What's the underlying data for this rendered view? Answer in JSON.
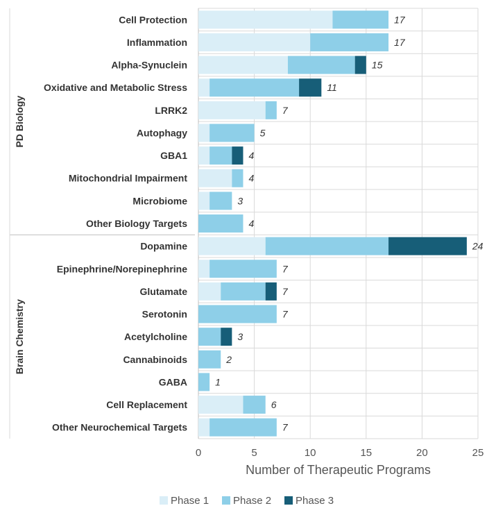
{
  "chart_data": {
    "type": "bar",
    "orientation": "horizontal",
    "stacked": true,
    "xlabel": "Number of Therapeutic Programs",
    "xlim": [
      0,
      25
    ],
    "xticks": [
      0,
      5,
      10,
      15,
      20,
      25
    ],
    "grid": true,
    "legend_position": "bottom",
    "groups": [
      {
        "name": "PD Biology",
        "categories": [
          "Cell Protection",
          "Inflammation",
          "Alpha-Synuclein",
          "Oxidative and Metabolic Stress",
          "LRRK2",
          "Autophagy",
          "GBA1",
          "Mitochondrial Impairment",
          "Microbiome",
          "Other  Biology Targets"
        ]
      },
      {
        "name": "Brain Chemistry",
        "categories": [
          "Dopamine",
          "Epinephrine/Norepinephrine",
          "Glutamate",
          "Serotonin",
          "Acetylcholine",
          "Cannabinoids",
          "GABA",
          "Cell Replacement",
          "Other Neurochemical Targets"
        ]
      }
    ],
    "categories": [
      "Cell Protection",
      "Inflammation",
      "Alpha-Synuclein",
      "Oxidative and Metabolic Stress",
      "LRRK2",
      "Autophagy",
      "GBA1",
      "Mitochondrial Impairment",
      "Microbiome",
      "Other  Biology Targets",
      "Dopamine",
      "Epinephrine/Norepinephrine",
      "Glutamate",
      "Serotonin",
      "Acetylcholine",
      "Cannabinoids",
      "GABA",
      "Cell Replacement",
      "Other Neurochemical Targets"
    ],
    "series": [
      {
        "name": "Phase 1",
        "color": "#daeef7",
        "values": [
          12,
          10,
          8,
          1,
          6,
          1,
          1,
          3,
          1,
          0,
          6,
          1,
          2,
          0,
          0,
          0,
          0,
          4,
          1
        ]
      },
      {
        "name": "Phase 2",
        "color": "#8ecfe8",
        "values": [
          5,
          7,
          6,
          8,
          1,
          4,
          2,
          1,
          2,
          4,
          11,
          6,
          4,
          7,
          2,
          2,
          1,
          2,
          6
        ]
      },
      {
        "name": "Phase 3",
        "color": "#175e78",
        "values": [
          0,
          0,
          1,
          2,
          0,
          0,
          1,
          0,
          0,
          0,
          7,
          0,
          1,
          0,
          1,
          0,
          0,
          0,
          0
        ]
      }
    ],
    "totals": [
      "17",
      "17",
      "15",
      "11",
      "7",
      "5",
      "4",
      "4",
      "3",
      "4",
      "24",
      "7",
      "7",
      "7",
      "3",
      "2",
      "1",
      "6",
      "7"
    ]
  }
}
